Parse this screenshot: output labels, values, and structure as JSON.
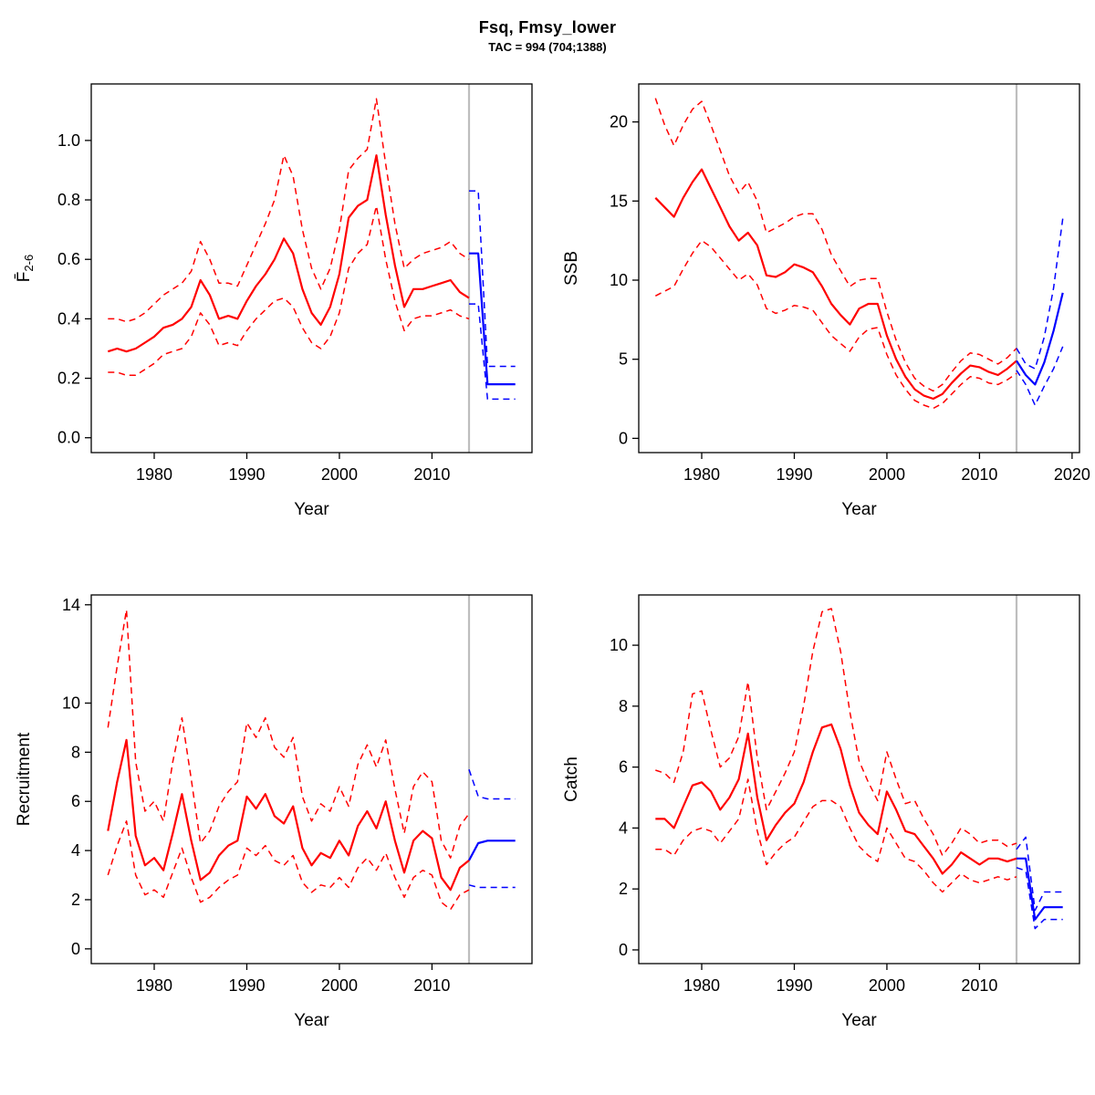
{
  "header": {
    "title": "Fsq, Fmsy_lower",
    "subtitle": "TAC = 994 (704;1388)"
  },
  "colors": {
    "historical": "#FF0000",
    "forecast": "#0000FF",
    "reference_line": "#BEBEBE",
    "axis": "#000000"
  },
  "forecast_start_year": 2014,
  "chart_data": [
    {
      "type": "line",
      "panel": "fishing-mortality",
      "ylabel_main": "F̄",
      "ylabel_sub": "2-6",
      "xlabel": "Year",
      "xlim": [
        1973.2,
        2020.8
      ],
      "ylim": [
        -0.05,
        1.19
      ],
      "xticks": [
        1980,
        1990,
        2000,
        2010
      ],
      "yticks": [
        0,
        0.2,
        0.4,
        0.6,
        0.8,
        1.0
      ],
      "ytick_labels": [
        "0.0",
        "0.2",
        "0.4",
        "0.6",
        "0.8",
        "1.0"
      ],
      "vline_x": 2014,
      "series": [
        {
          "name": "estimate-upper-ci",
          "color": "#FF0000",
          "dash": true,
          "x0": 1975,
          "y": [
            0.4,
            0.4,
            0.39,
            0.4,
            0.42,
            0.45,
            0.48,
            0.5,
            0.52,
            0.56,
            0.66,
            0.6,
            0.52,
            0.52,
            0.51,
            0.58,
            0.65,
            0.72,
            0.8,
            0.95,
            0.88,
            0.7,
            0.57,
            0.5,
            0.57,
            0.7,
            0.9,
            0.94,
            0.97,
            1.14,
            0.92,
            0.72,
            0.57,
            0.6,
            0.62,
            0.63,
            0.64,
            0.66,
            0.62,
            0.6
          ]
        },
        {
          "name": "estimate-lower-ci",
          "color": "#FF0000",
          "dash": true,
          "x0": 1975,
          "y": [
            0.22,
            0.22,
            0.21,
            0.21,
            0.23,
            0.25,
            0.28,
            0.29,
            0.3,
            0.34,
            0.42,
            0.38,
            0.31,
            0.32,
            0.31,
            0.36,
            0.4,
            0.43,
            0.46,
            0.47,
            0.44,
            0.37,
            0.32,
            0.3,
            0.34,
            0.42,
            0.57,
            0.62,
            0.65,
            0.78,
            0.6,
            0.46,
            0.36,
            0.4,
            0.41,
            0.41,
            0.42,
            0.43,
            0.41,
            0.4
          ]
        },
        {
          "name": "estimate-median",
          "color": "#FF0000",
          "dash": false,
          "x0": 1975,
          "y": [
            0.29,
            0.3,
            0.29,
            0.3,
            0.32,
            0.34,
            0.37,
            0.38,
            0.4,
            0.44,
            0.53,
            0.48,
            0.4,
            0.41,
            0.4,
            0.46,
            0.51,
            0.55,
            0.6,
            0.67,
            0.62,
            0.5,
            0.42,
            0.38,
            0.44,
            0.55,
            0.74,
            0.78,
            0.8,
            0.95,
            0.75,
            0.58,
            0.44,
            0.5,
            0.5,
            0.51,
            0.52,
            0.53,
            0.49,
            0.47
          ]
        },
        {
          "name": "forecast-upper-ci",
          "color": "#0000FF",
          "dash": true,
          "x0": 2014,
          "y": [
            0.83,
            0.83,
            0.24,
            0.24,
            0.24,
            0.24
          ]
        },
        {
          "name": "forecast-lower-ci",
          "color": "#0000FF",
          "dash": true,
          "x0": 2014,
          "y": [
            0.45,
            0.45,
            0.13,
            0.13,
            0.13,
            0.13
          ]
        },
        {
          "name": "forecast-median",
          "color": "#0000FF",
          "dash": false,
          "x0": 2014,
          "y": [
            0.62,
            0.62,
            0.18,
            0.18,
            0.18,
            0.18
          ]
        }
      ]
    },
    {
      "type": "line",
      "panel": "ssb",
      "ylabel_main": "SSB",
      "ylabel_sub": "",
      "xlabel": "Year",
      "xlim": [
        1973.2,
        2020.8
      ],
      "ylim": [
        -0.9,
        22.4
      ],
      "xticks": [
        1980,
        1990,
        2000,
        2010,
        2020
      ],
      "yticks": [
        0,
        5,
        10,
        15,
        20
      ],
      "ytick_labels": [
        "0",
        "5",
        "10",
        "15",
        "20"
      ],
      "vline_x": 2014,
      "series": [
        {
          "name": "estimate-upper-ci",
          "color": "#FF0000",
          "dash": true,
          "x0": 1975,
          "y": [
            21.5,
            19.8,
            18.5,
            19.8,
            20.8,
            21.3,
            19.8,
            18.2,
            16.6,
            15.5,
            16.2,
            15.0,
            13.0,
            13.3,
            13.6,
            14.0,
            14.2,
            14.2,
            13.2,
            11.6,
            10.6,
            9.6,
            10.0,
            10.1,
            10.1,
            8.0,
            6.2,
            4.8,
            3.8,
            3.3,
            3.0,
            3.4,
            4.2,
            4.9,
            5.4,
            5.3,
            5.0,
            4.7,
            5.1,
            5.7
          ]
        },
        {
          "name": "estimate-lower-ci",
          "color": "#FF0000",
          "dash": true,
          "x0": 1975,
          "y": [
            9.0,
            9.3,
            9.6,
            10.7,
            11.7,
            12.5,
            12.1,
            11.4,
            10.7,
            10.0,
            10.4,
            9.7,
            8.2,
            7.9,
            8.1,
            8.4,
            8.3,
            8.1,
            7.3,
            6.5,
            6.0,
            5.5,
            6.4,
            6.9,
            7.0,
            5.3,
            4.0,
            3.1,
            2.4,
            2.1,
            1.9,
            2.2,
            2.8,
            3.4,
            3.9,
            3.8,
            3.5,
            3.4,
            3.7,
            4.1
          ]
        },
        {
          "name": "estimate-median",
          "color": "#FF0000",
          "dash": false,
          "x0": 1975,
          "y": [
            15.2,
            14.6,
            14.0,
            15.2,
            16.2,
            17.0,
            15.8,
            14.6,
            13.4,
            12.5,
            13.0,
            12.2,
            10.3,
            10.2,
            10.5,
            11.0,
            10.8,
            10.5,
            9.6,
            8.5,
            7.8,
            7.2,
            8.2,
            8.5,
            8.5,
            6.5,
            5.0,
            3.9,
            3.1,
            2.7,
            2.5,
            2.8,
            3.5,
            4.1,
            4.6,
            4.5,
            4.2,
            4.0,
            4.4,
            4.9
          ]
        },
        {
          "name": "forecast-upper-ci",
          "color": "#0000FF",
          "dash": true,
          "x0": 2014,
          "y": [
            5.7,
            4.7,
            4.4,
            6.4,
            9.5,
            13.9
          ]
        },
        {
          "name": "forecast-lower-ci",
          "color": "#0000FF",
          "dash": true,
          "x0": 2014,
          "y": [
            4.3,
            3.4,
            2.1,
            3.3,
            4.4,
            5.8
          ]
        },
        {
          "name": "forecast-median",
          "color": "#0000FF",
          "dash": false,
          "x0": 2014,
          "y": [
            4.9,
            4.0,
            3.4,
            4.8,
            6.8,
            9.2
          ]
        }
      ]
    },
    {
      "type": "line",
      "panel": "recruitment",
      "ylabel_main": "Recruitment",
      "ylabel_sub": "",
      "xlabel": "Year",
      "xlim": [
        1973.2,
        2020.8
      ],
      "ylim": [
        -0.6,
        14.4
      ],
      "xticks": [
        1980,
        1990,
        2000,
        2010
      ],
      "yticks": [
        0,
        2,
        4,
        6,
        8,
        10,
        14
      ],
      "ytick_labels": [
        "0",
        "2",
        "4",
        "6",
        "8",
        "10",
        "14"
      ],
      "vline_x": 2014,
      "series": [
        {
          "name": "estimate-upper-ci",
          "color": "#FF0000",
          "dash": true,
          "x0": 1975,
          "y": [
            9.0,
            11.5,
            13.8,
            7.6,
            5.6,
            6.0,
            5.2,
            7.6,
            9.4,
            6.9,
            4.3,
            4.8,
            5.8,
            6.4,
            6.8,
            9.2,
            8.6,
            9.4,
            8.2,
            7.8,
            8.6,
            6.2,
            5.2,
            5.9,
            5.6,
            6.6,
            5.8,
            7.5,
            8.3,
            7.4,
            8.5,
            6.5,
            4.7,
            6.6,
            7.2,
            6.8,
            4.4,
            3.7,
            5.0,
            5.5
          ]
        },
        {
          "name": "estimate-lower-ci",
          "color": "#FF0000",
          "dash": true,
          "x0": 1975,
          "y": [
            3.0,
            4.2,
            5.2,
            3.0,
            2.2,
            2.4,
            2.1,
            3.1,
            4.1,
            2.9,
            1.9,
            2.1,
            2.5,
            2.8,
            3.0,
            4.1,
            3.8,
            4.2,
            3.6,
            3.4,
            3.8,
            2.7,
            2.3,
            2.6,
            2.5,
            2.9,
            2.5,
            3.3,
            3.7,
            3.2,
            3.9,
            2.9,
            2.1,
            2.9,
            3.2,
            3.0,
            1.9,
            1.6,
            2.2,
            2.4
          ]
        },
        {
          "name": "estimate-median",
          "color": "#FF0000",
          "dash": false,
          "x0": 1975,
          "y": [
            4.8,
            6.8,
            8.5,
            4.6,
            3.4,
            3.7,
            3.2,
            4.7,
            6.3,
            4.4,
            2.8,
            3.1,
            3.8,
            4.2,
            4.4,
            6.2,
            5.7,
            6.3,
            5.4,
            5.1,
            5.8,
            4.1,
            3.4,
            3.9,
            3.7,
            4.4,
            3.8,
            5.0,
            5.6,
            4.9,
            6.0,
            4.4,
            3.1,
            4.4,
            4.8,
            4.5,
            2.9,
            2.4,
            3.3,
            3.6
          ]
        },
        {
          "name": "forecast-upper-ci",
          "color": "#0000FF",
          "dash": true,
          "x0": 2014,
          "y": [
            7.3,
            6.2,
            6.1,
            6.1,
            6.1,
            6.1
          ]
        },
        {
          "name": "forecast-lower-ci",
          "color": "#0000FF",
          "dash": true,
          "x0": 2014,
          "y": [
            2.6,
            2.5,
            2.5,
            2.5,
            2.5,
            2.5
          ]
        },
        {
          "name": "forecast-median",
          "color": "#0000FF",
          "dash": false,
          "x0": 2014,
          "y": [
            3.6,
            4.3,
            4.4,
            4.4,
            4.4,
            4.4
          ]
        }
      ]
    },
    {
      "type": "line",
      "panel": "catch",
      "ylabel_main": "Catch",
      "ylabel_sub": "",
      "xlabel": "Year",
      "xlim": [
        1973.2,
        2020.8
      ],
      "ylim": [
        -0.45,
        11.65
      ],
      "xticks": [
        1980,
        1990,
        2000,
        2010
      ],
      "yticks": [
        0,
        2,
        4,
        6,
        8,
        10
      ],
      "ytick_labels": [
        "0",
        "2",
        "4",
        "6",
        "8",
        "10"
      ],
      "vline_x": 2014,
      "series": [
        {
          "name": "estimate-upper-ci",
          "color": "#FF0000",
          "dash": true,
          "x0": 1975,
          "y": [
            5.9,
            5.8,
            5.5,
            6.5,
            8.4,
            8.5,
            7.2,
            6.0,
            6.3,
            7.0,
            8.8,
            6.3,
            4.6,
            5.2,
            5.8,
            6.5,
            8.0,
            9.8,
            11.1,
            11.2,
            9.8,
            7.8,
            6.2,
            5.5,
            4.9,
            6.5,
            5.6,
            4.8,
            4.9,
            4.3,
            3.8,
            3.1,
            3.5,
            4.0,
            3.8,
            3.5,
            3.6,
            3.6,
            3.4,
            3.5
          ]
        },
        {
          "name": "estimate-lower-ci",
          "color": "#FF0000",
          "dash": true,
          "x0": 1975,
          "y": [
            3.3,
            3.3,
            3.1,
            3.6,
            3.9,
            4.0,
            3.9,
            3.5,
            3.9,
            4.3,
            5.6,
            3.9,
            2.8,
            3.2,
            3.5,
            3.7,
            4.2,
            4.7,
            4.9,
            4.9,
            4.7,
            4.0,
            3.4,
            3.1,
            2.9,
            4.0,
            3.5,
            3.0,
            2.9,
            2.6,
            2.2,
            1.9,
            2.2,
            2.5,
            2.3,
            2.2,
            2.3,
            2.4,
            2.3,
            2.4
          ]
        },
        {
          "name": "estimate-median",
          "color": "#FF0000",
          "dash": false,
          "x0": 1975,
          "y": [
            4.3,
            4.3,
            4.0,
            4.7,
            5.4,
            5.5,
            5.2,
            4.6,
            5.0,
            5.6,
            7.1,
            5.0,
            3.6,
            4.1,
            4.5,
            4.8,
            5.5,
            6.5,
            7.3,
            7.4,
            6.6,
            5.4,
            4.5,
            4.1,
            3.8,
            5.2,
            4.6,
            3.9,
            3.8,
            3.4,
            3.0,
            2.5,
            2.8,
            3.2,
            3.0,
            2.8,
            3.0,
            3.0,
            2.9,
            3.0
          ]
        },
        {
          "name": "forecast-upper-ci",
          "color": "#0000FF",
          "dash": true,
          "x0": 2014,
          "y": [
            3.3,
            3.7,
            1.3,
            1.9,
            1.9,
            1.9
          ]
        },
        {
          "name": "forecast-lower-ci",
          "color": "#0000FF",
          "dash": true,
          "x0": 2014,
          "y": [
            2.7,
            2.6,
            0.7,
            1.0,
            1.0,
            1.0
          ]
        },
        {
          "name": "forecast-median",
          "color": "#0000FF",
          "dash": false,
          "x0": 2014,
          "y": [
            3.0,
            3.0,
            1.0,
            1.4,
            1.4,
            1.4
          ]
        }
      ]
    }
  ]
}
